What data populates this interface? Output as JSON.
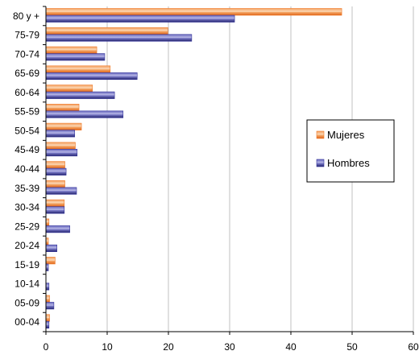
{
  "chart_data": {
    "type": "bar",
    "orientation": "horizontal",
    "categories": [
      "80 y +",
      "75-79",
      "70-74",
      "65-69",
      "60-64",
      "55-59",
      "50-54",
      "45-49",
      "40-44",
      "35-39",
      "30-34",
      "25-29",
      "20-24",
      "15-19",
      "10-14",
      "05-09",
      "00-04"
    ],
    "series": [
      {
        "name": "Mujeres",
        "color": "#F07A28",
        "values": [
          48.3,
          19.9,
          8.3,
          10.5,
          7.6,
          5.4,
          5.8,
          4.8,
          3.1,
          3.1,
          3.0,
          0.5,
          0.4,
          1.5,
          0.0,
          0.6,
          0.6
        ]
      },
      {
        "name": "Hombres",
        "color": "#333399",
        "values": [
          30.8,
          23.8,
          9.6,
          14.9,
          11.2,
          12.6,
          4.7,
          5.1,
          3.3,
          5.0,
          3.0,
          3.9,
          1.8,
          0.4,
          0.5,
          1.3,
          0.5
        ]
      }
    ],
    "xticks": [
      "0",
      "10",
      "20",
      "30",
      "40",
      "50",
      "60"
    ],
    "xlim": [
      0,
      60
    ],
    "grid": "vertical",
    "legend": {
      "position": "right",
      "entries": [
        "Mujeres",
        "Hombres"
      ]
    }
  }
}
